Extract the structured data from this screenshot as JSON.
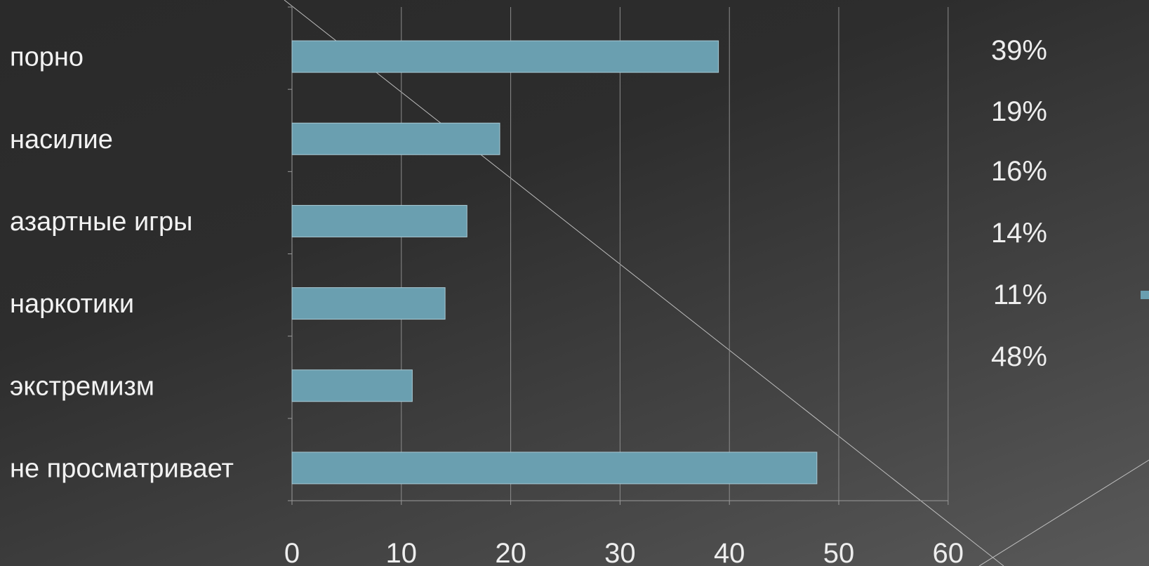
{
  "chart_data": {
    "type": "bar",
    "orientation": "horizontal",
    "categories": [
      "порно",
      "насилие",
      "азартные игры",
      "наркотики",
      "экстремизм",
      "не просматривает"
    ],
    "values": [
      39,
      19,
      16,
      14,
      11,
      48
    ],
    "xlim": [
      0,
      60
    ],
    "xticks": [
      "0",
      "10",
      "20",
      "30",
      "40",
      "50",
      "60"
    ],
    "grid": true,
    "bar_color": "#6a9fb0",
    "percent_labels": [
      "39%",
      "19%",
      "16%",
      "14%",
      "11%",
      "48%"
    ],
    "legend_marker_color": "#6a9fb0"
  }
}
